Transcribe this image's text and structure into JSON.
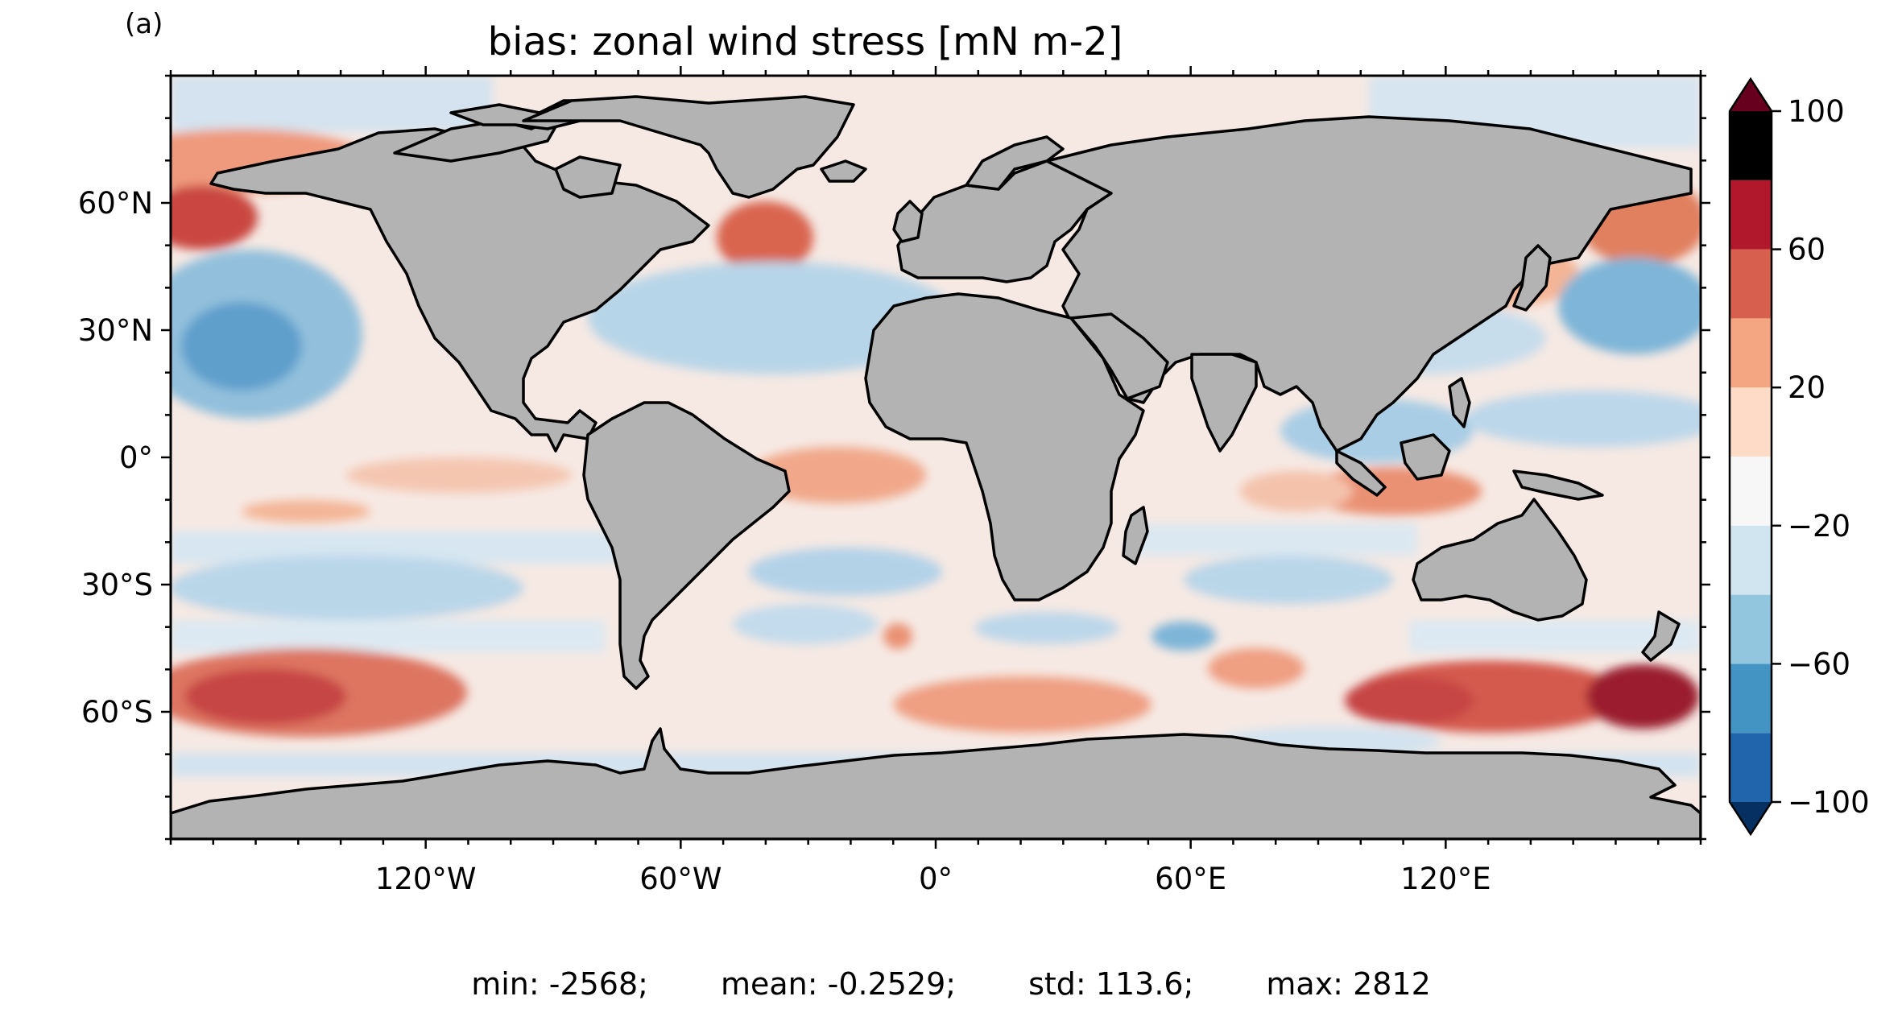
{
  "panel_label": "(a)",
  "title": "bias: zonal wind stress [mN m-2]",
  "axes": {
    "x_ticks": [
      "120°W",
      "60°W",
      "0°",
      "60°E",
      "120°E"
    ],
    "x_tick_values": [
      -120,
      -60,
      0,
      60,
      120
    ],
    "y_ticks": [
      "60°N",
      "30°N",
      "0°",
      "30°S",
      "60°S"
    ],
    "y_tick_values": [
      60,
      30,
      0,
      -30,
      -60
    ],
    "lon_range": [
      -180,
      180
    ],
    "lat_range": [
      -90,
      90
    ],
    "projection": "plate carree"
  },
  "colorbar": {
    "tick_labels": [
      "100",
      "60",
      "20",
      "−20",
      "−60",
      "−100"
    ],
    "tick_values": [
      100,
      60,
      20,
      -20,
      -60,
      -100
    ],
    "range": [
      -100,
      100
    ],
    "extend": "both",
    "levels": [
      -100,
      -80,
      -60,
      -40,
      -20,
      0,
      20,
      40,
      60,
      80,
      100
    ],
    "colors": [
      "#053061",
      "#2166ac",
      "#4393c3",
      "#92c5de",
      "#d1e5f0",
      "#f7f7f7",
      "#fddbc7",
      "#f4a582",
      "#d6604d",
      "#b2182b",
      "#67001f"
    ],
    "colormap": "RdBu_r"
  },
  "land_color": "#b3b3b3",
  "coastline_color": "#000000",
  "stats": {
    "min": "min: -2568;",
    "mean": "mean: -0.2529;",
    "std": "std: 113.6;",
    "max": "max: 2812"
  },
  "chart_data": {
    "type": "heatmap",
    "title": "bias: zonal wind stress [mN m-2]",
    "variable": "zonal wind stress bias",
    "units": "mN m-2",
    "x_range": [
      -180,
      180
    ],
    "y_range": [
      -90,
      90
    ],
    "color_range": [
      -100,
      100
    ],
    "summary": {
      "min": -2568,
      "mean": -0.2529,
      "std": 113.6,
      "max": 2812
    }
  }
}
